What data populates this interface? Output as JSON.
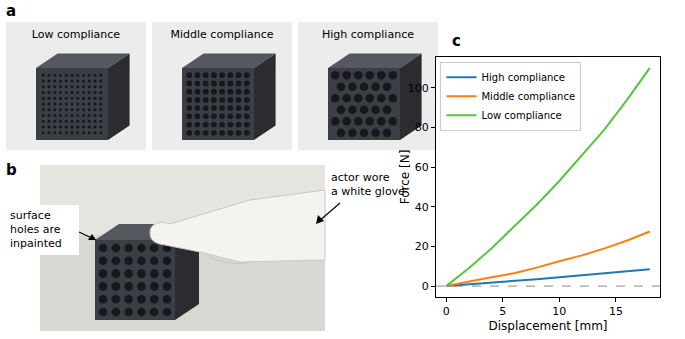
{
  "panel_labels": [
    "a",
    "b",
    "c"
  ],
  "photos_a": {
    "labels": [
      "Low compliance",
      "Middle compliance",
      "High compliance"
    ]
  },
  "photo_b": {
    "annotations": [
      [
        "surface",
        "holes are",
        "inpainted"
      ],
      [
        "actor wore",
        "a white glove"
      ]
    ]
  },
  "chart_data": {
    "type": "line",
    "x_label": "Displacement [mm]",
    "y_label": "Force [N]",
    "x": [
      0,
      2,
      4,
      6,
      8,
      10,
      12,
      14,
      16,
      18
    ],
    "series": [
      {
        "name": "High compliance",
        "color": "#1f77b4",
        "values": [
          0,
          0.8,
          1.8,
          2.7,
          3.5,
          4.5,
          5.5,
          6.3,
          7.5,
          8.5
        ]
      },
      {
        "name": "Middle compliance",
        "color": "#ff7f0e",
        "values": [
          0,
          2.3,
          4.5,
          6.5,
          9.3,
          12.5,
          15.5,
          19,
          23,
          27.5
        ]
      },
      {
        "name": "Low compliance",
        "color": "#56c43c",
        "values": [
          0,
          9,
          19,
          30,
          41,
          53,
          66,
          79,
          94,
          110
        ]
      }
    ],
    "xlim": [
      -0.9,
      18.9
    ],
    "xticks": [
      0,
      5,
      10,
      15
    ],
    "ylim": [
      -5.5,
      115.5
    ],
    "yticks": [
      0,
      20,
      40,
      60,
      80,
      100
    ],
    "hline": 0,
    "grid": false,
    "legend": "upper left"
  }
}
